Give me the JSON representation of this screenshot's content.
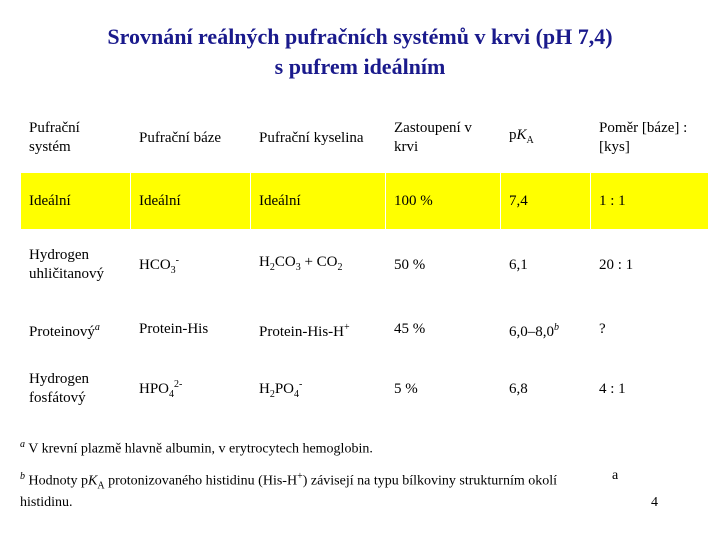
{
  "title": [
    "Srovnání reálných pufračních systémů v krvi (pH 7,4)",
    "s pufrem ideálním"
  ],
  "table": {
    "header": [
      [
        {
          "text": "Pufrační systém"
        }
      ],
      [
        {
          "text": "Pufrační báze"
        }
      ],
      [
        {
          "text": "Pufrační kyselina"
        }
      ],
      [
        {
          "text": "Zastoupení v krvi"
        }
      ],
      [
        {
          "text": "p"
        },
        {
          "text": "K",
          "italic": true
        },
        {
          "text": "A",
          "pos": "sub"
        }
      ],
      [
        {
          "text": "Poměr [báze] : [kys]"
        }
      ]
    ],
    "rows": [
      [
        [
          {
            "text": "Ideální"
          }
        ],
        [
          {
            "text": "Ideální"
          }
        ],
        [
          {
            "text": "Ideální"
          }
        ],
        [
          {
            "text": "100 %"
          }
        ],
        [
          {
            "text": "7,4"
          }
        ],
        [
          {
            "text": "1 : 1"
          }
        ]
      ],
      [
        [
          {
            "text": "Hydrogen uhličitanový"
          }
        ],
        [
          {
            "text": "HCO"
          },
          {
            "text": "3",
            "pos": "sub"
          },
          {
            "text": "-",
            "pos": "sup"
          }
        ],
        [
          {
            "text": "H"
          },
          {
            "text": "2",
            "pos": "sub"
          },
          {
            "text": "CO"
          },
          {
            "text": "3",
            "pos": "sub"
          },
          {
            "text": " + CO"
          },
          {
            "text": "2",
            "pos": "sub"
          }
        ],
        [
          {
            "text": "50 %"
          }
        ],
        [
          {
            "text": "6,1"
          }
        ],
        [
          {
            "text": "20 : 1"
          }
        ]
      ],
      [
        [
          {
            "text": "Proteinový"
          },
          {
            "text": "a",
            "pos": "sup",
            "italic": true
          }
        ],
        [
          {
            "text": "Protein-His"
          }
        ],
        [
          {
            "text": "Protein-His-H"
          },
          {
            "text": "+",
            "pos": "sup"
          }
        ],
        [
          {
            "text": "45 %"
          }
        ],
        [
          {
            "text": "6,0–8,0"
          },
          {
            "text": "b",
            "pos": "sup",
            "italic": true
          }
        ],
        [
          {
            "text": "?"
          }
        ]
      ],
      [
        [
          {
            "text": "Hydrogen fosfátový"
          }
        ],
        [
          {
            "text": "HPO"
          },
          {
            "text": "4",
            "pos": "sub"
          },
          {
            "text": "2-",
            "pos": "sup"
          }
        ],
        [
          {
            "text": "H"
          },
          {
            "text": "2",
            "pos": "sub"
          },
          {
            "text": "PO"
          },
          {
            "text": "4",
            "pos": "sub"
          },
          {
            "text": "-",
            "pos": "sup"
          }
        ],
        [
          {
            "text": "5 %"
          }
        ],
        [
          {
            "text": "6,8"
          }
        ],
        [
          {
            "text": "4 : 1"
          }
        ]
      ]
    ]
  },
  "footnotes": [
    [
      {
        "text": "a",
        "pos": "sup",
        "italic": true
      },
      {
        "text": " V krevní plazmě hlavně albumin, v erytrocytech hemoglobin."
      }
    ],
    [
      {
        "text": "b",
        "pos": "sup",
        "italic": true
      },
      {
        "text": " Hodnoty p"
      },
      {
        "text": "K",
        "italic": true
      },
      {
        "text": "A",
        "pos": "sub"
      },
      {
        "text": " protonizovaného histidinu (His-H"
      },
      {
        "text": "+",
        "pos": "sup"
      },
      {
        "text": ") závisejí na typu bílkoviny strukturním okolí histidinu."
      }
    ]
  ],
  "stray_mark": "a",
  "page_number": "4"
}
